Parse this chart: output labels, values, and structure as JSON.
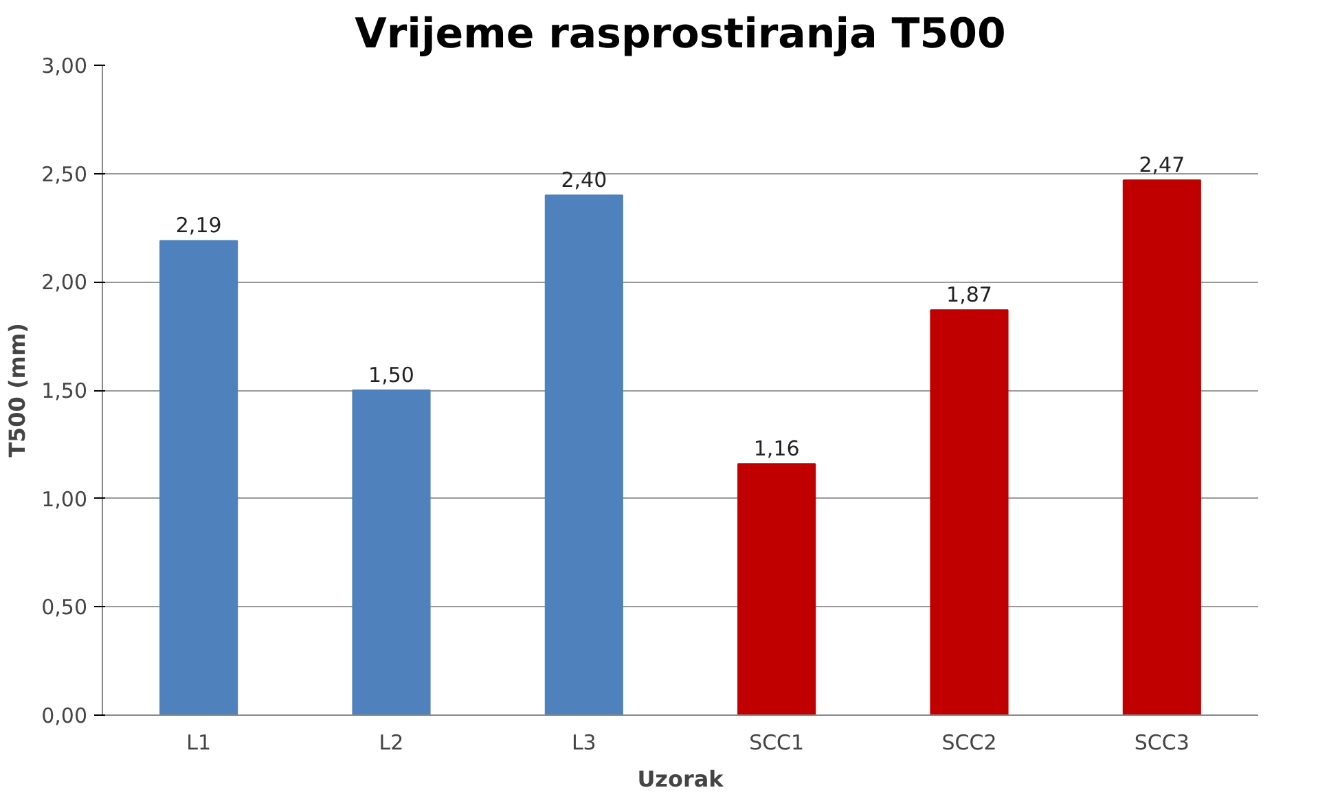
{
  "chart_data": {
    "type": "bar",
    "title": "Vrijeme rasprostiranja T500",
    "xlabel": "Uzorak",
    "ylabel": "T500 (mm)",
    "categories": [
      "L1",
      "L2",
      "L3",
      "SCC1",
      "SCC2",
      "SCC3"
    ],
    "values": [
      2.19,
      1.5,
      2.4,
      1.16,
      1.87,
      2.47
    ],
    "colors": [
      "#4f81bd",
      "#4f81bd",
      "#4f81bd",
      "#c00000",
      "#c00000",
      "#c00000"
    ],
    "value_labels": [
      "2,19",
      "1,50",
      "2,40",
      "1,16",
      "1,87",
      "2,47"
    ],
    "ylim": [
      0,
      3
    ],
    "yticks": [
      {
        "value": 0,
        "label": "0,00"
      },
      {
        "value": 0.5,
        "label": "0,50"
      },
      {
        "value": 1,
        "label": "1,00"
      },
      {
        "value": 1.5,
        "label": "1,50"
      },
      {
        "value": 2,
        "label": "2,00"
      },
      {
        "value": 2.5,
        "label": "2,50"
      },
      {
        "value": 3,
        "label": "3,00"
      }
    ],
    "grid": "y"
  }
}
